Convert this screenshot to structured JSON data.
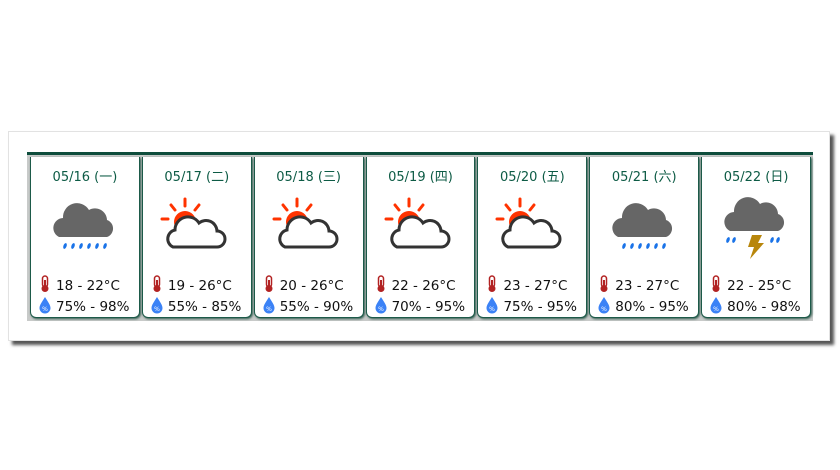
{
  "colors": {
    "date_text": "#0d5b45",
    "border": "#0e4d3c",
    "sun": "#ff3300",
    "cloud": "#666666",
    "rain": "#1a73e8",
    "lightning": "#b8860b",
    "thermometer": "#b22222",
    "humidity": "#3b82f6"
  },
  "days": [
    {
      "date": "05/16 (一)",
      "icon": "rain-cloud-icon",
      "temp": "18 - 22°C",
      "humidity": "75% - 98%"
    },
    {
      "date": "05/17 (二)",
      "icon": "sun-cloud-icon",
      "temp": "19 - 26°C",
      "humidity": "55% - 85%"
    },
    {
      "date": "05/18 (三)",
      "icon": "sun-cloud-icon",
      "temp": "20 - 26°C",
      "humidity": "55% - 90%"
    },
    {
      "date": "05/19 (四)",
      "icon": "sun-cloud-icon",
      "temp": "22 - 26°C",
      "humidity": "70% - 95%"
    },
    {
      "date": "05/20 (五)",
      "icon": "sun-cloud-icon",
      "temp": "23 - 27°C",
      "humidity": "75% - 95%"
    },
    {
      "date": "05/21 (六)",
      "icon": "rain-cloud-icon",
      "temp": "23 - 27°C",
      "humidity": "80% - 95%"
    },
    {
      "date": "05/22 (日)",
      "icon": "thunderstorm-icon",
      "temp": "22 - 25°C",
      "humidity": "80% - 98%"
    }
  ]
}
